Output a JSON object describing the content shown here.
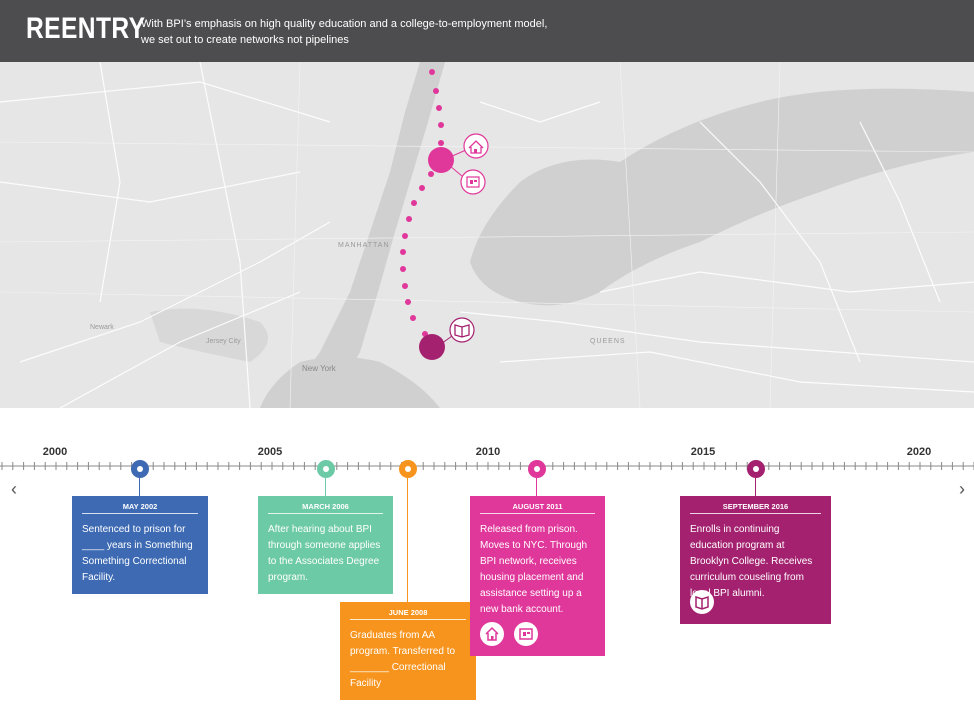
{
  "header": {
    "title": "REENTRY",
    "subtitle": "With BPI’s emphasis on high quality education and a college-to-employment model, we set out to create networks not pipelines"
  },
  "map": {
    "labels": {
      "manhattan": "MANHATTAN",
      "new_york": "New York",
      "jersey_city": "Jersey City",
      "newark": "Newark",
      "queens": "QUEENS"
    }
  },
  "timeline": {
    "years": [
      "2000",
      "2005",
      "2010",
      "2015",
      "2020"
    ]
  },
  "events": [
    {
      "date": "MAY 2002",
      "text": "Sentenced to prison for ____ years in Something Something Correctional Facility.",
      "color": "#3d6ab3"
    },
    {
      "date": "MARCH 2006",
      "text": "After hearing about BPI through someone applies to the Associates Degree program.",
      "color": "#6dcaa6"
    },
    {
      "date": "JUNE 2008",
      "text": "Graduates from AA program. Transferred to _______ Correctional Facility",
      "color": "#f7941d"
    },
    {
      "date": "AUGUST 2011",
      "text": "Released from prison. Moves to NYC. Through BPI network, receives housing placement and assistance setting up a new bank account.",
      "color": "#e0379a",
      "icons": [
        "house-icon",
        "bank-icon"
      ]
    },
    {
      "date": "SEPTEMBER 2016",
      "text": "Enrolls in continuing education program at Brooklyn College. Receives curriculum couseling from local BPI alumni.",
      "color": "#a3216f",
      "icons": [
        "book-icon"
      ]
    }
  ]
}
